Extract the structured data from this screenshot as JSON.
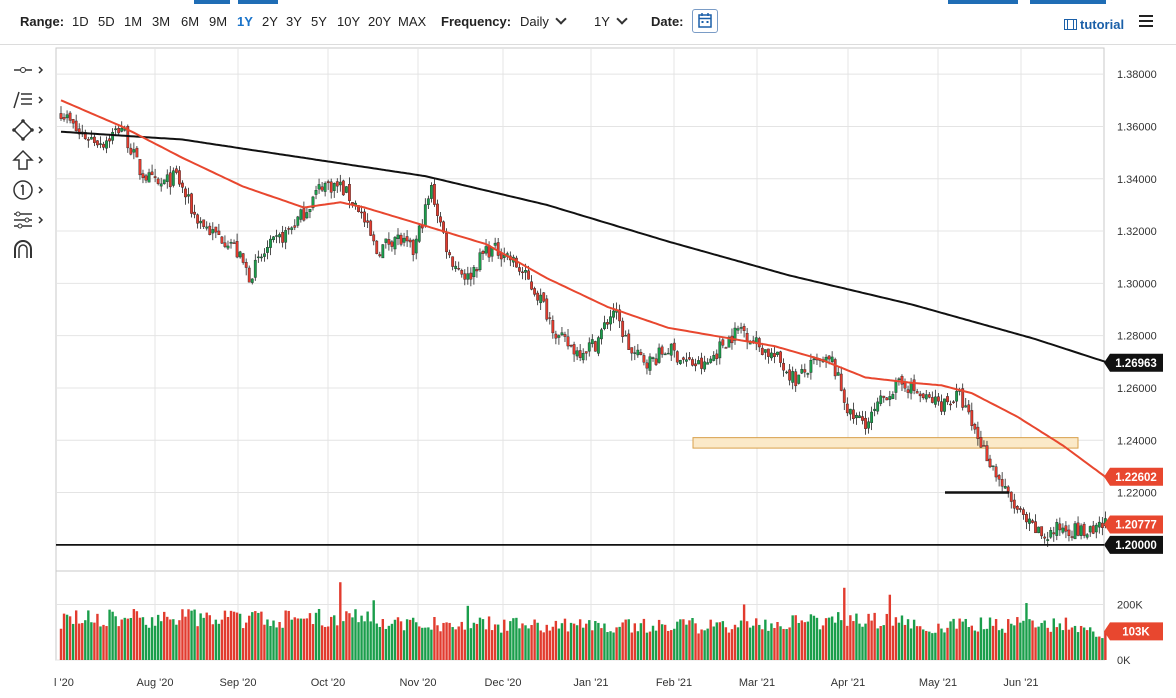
{
  "toolbar": {
    "range_label": "Range:",
    "ranges": [
      "1D",
      "5D",
      "1M",
      "3M",
      "6M",
      "9M",
      "1Y",
      "2Y",
      "3Y",
      "5Y",
      "10Y",
      "20Y",
      "MAX"
    ],
    "active_range": "1Y",
    "frequency_label": "Frequency:",
    "frequency_value": "Daily",
    "period_value": "1Y",
    "date_label": "Date:",
    "tutorial_label": "tutorial",
    "accent_color": "#1a73c9"
  },
  "sidebar_tools": [
    {
      "name": "crosshair-tool",
      "icon": "crosshair-icon"
    },
    {
      "name": "fibonacci-tool",
      "icon": "fib-icon"
    },
    {
      "name": "shapes-tool",
      "icon": "shapes-icon"
    },
    {
      "name": "arrow-tool",
      "icon": "arrow-up-icon"
    },
    {
      "name": "number-tool",
      "icon": "number-one-icon"
    },
    {
      "name": "measure-tool",
      "icon": "measure-icon"
    },
    {
      "name": "magnet-tool",
      "icon": "magnet-icon"
    }
  ],
  "chart_data": {
    "type": "candlestick",
    "ylim": [
      1.19,
      1.39
    ],
    "y_ticks": [
      "1.38000",
      "1.36000",
      "1.34000",
      "1.32000",
      "1.30000",
      "1.28000",
      "1.26000",
      "1.24000",
      "1.22000",
      "1.20000"
    ],
    "x_labels": [
      "l '20",
      "Aug '20",
      "Sep '20",
      "Oct '20",
      "Nov '20",
      "Dec '20",
      "Jan '21",
      "Feb '21",
      "Mar '21",
      "Apr '21",
      "May '21",
      "Jun '21"
    ],
    "close_anchors": [
      [
        0,
        1.366
      ],
      [
        6,
        1.357
      ],
      [
        14,
        1.354
      ],
      [
        20,
        1.36
      ],
      [
        26,
        1.343
      ],
      [
        32,
        1.337
      ],
      [
        38,
        1.341
      ],
      [
        44,
        1.326
      ],
      [
        50,
        1.319
      ],
      [
        56,
        1.316
      ],
      [
        62,
        1.303
      ],
      [
        68,
        1.313
      ],
      [
        74,
        1.319
      ],
      [
        80,
        1.327
      ],
      [
        86,
        1.338
      ],
      [
        92,
        1.337
      ],
      [
        98,
        1.329
      ],
      [
        104,
        1.312
      ],
      [
        110,
        1.318
      ],
      [
        116,
        1.312
      ],
      [
        122,
        1.336
      ],
      [
        128,
        1.31
      ],
      [
        134,
        1.302
      ],
      [
        140,
        1.313
      ],
      [
        146,
        1.312
      ],
      [
        152,
        1.304
      ],
      [
        158,
        1.294
      ],
      [
        164,
        1.279
      ],
      [
        170,
        1.274
      ],
      [
        176,
        1.277
      ],
      [
        182,
        1.29
      ],
      [
        188,
        1.273
      ],
      [
        194,
        1.27
      ],
      [
        200,
        1.275
      ],
      [
        206,
        1.27
      ],
      [
        212,
        1.268
      ],
      [
        218,
        1.277
      ],
      [
        224,
        1.283
      ],
      [
        230,
        1.276
      ],
      [
        236,
        1.271
      ],
      [
        242,
        1.263
      ],
      [
        248,
        1.269
      ],
      [
        254,
        1.27
      ],
      [
        260,
        1.249
      ],
      [
        266,
        1.247
      ],
      [
        272,
        1.258
      ],
      [
        278,
        1.262
      ],
      [
        284,
        1.256
      ],
      [
        290,
        1.254
      ],
      [
        296,
        1.257
      ],
      [
        300,
        1.246
      ],
      [
        306,
        1.232
      ],
      [
        312,
        1.218
      ],
      [
        318,
        1.208
      ],
      [
        324,
        1.203
      ],
      [
        330,
        1.207
      ],
      [
        336,
        1.205
      ],
      [
        340,
        1.204
      ],
      [
        344,
        1.208
      ]
    ],
    "ma_short_anchors": [
      [
        0,
        1.37
      ],
      [
        20,
        1.36
      ],
      [
        40,
        1.348
      ],
      [
        60,
        1.337
      ],
      [
        80,
        1.329
      ],
      [
        92,
        1.331
      ],
      [
        100,
        1.329
      ],
      [
        120,
        1.322
      ],
      [
        140,
        1.315
      ],
      [
        160,
        1.302
      ],
      [
        180,
        1.291
      ],
      [
        200,
        1.283
      ],
      [
        220,
        1.279
      ],
      [
        235,
        1.276
      ],
      [
        250,
        1.271
      ],
      [
        265,
        1.264
      ],
      [
        280,
        1.262
      ],
      [
        290,
        1.261
      ],
      [
        300,
        1.258
      ],
      [
        315,
        1.249
      ],
      [
        330,
        1.238
      ],
      [
        344,
        1.226
      ]
    ],
    "ma_long_anchors": [
      [
        0,
        1.358
      ],
      [
        40,
        1.355
      ],
      [
        80,
        1.348
      ],
      [
        120,
        1.341
      ],
      [
        160,
        1.33
      ],
      [
        200,
        1.316
      ],
      [
        240,
        1.303
      ],
      [
        280,
        1.292
      ],
      [
        320,
        1.279
      ],
      [
        344,
        1.27
      ]
    ],
    "volume_anchors": [
      [
        0,
        150
      ],
      [
        40,
        155
      ],
      [
        80,
        150
      ],
      [
        100,
        165
      ],
      [
        110,
        135
      ],
      [
        150,
        130
      ],
      [
        200,
        125
      ],
      [
        230,
        130
      ],
      [
        260,
        150
      ],
      [
        290,
        125
      ],
      [
        310,
        130
      ],
      [
        330,
        130
      ],
      [
        344,
        103
      ]
    ],
    "volume_spikes": [
      [
        92,
        280
      ],
      [
        103,
        215
      ],
      [
        134,
        195
      ],
      [
        225,
        200
      ],
      [
        258,
        260
      ],
      [
        273,
        235
      ],
      [
        318,
        205
      ]
    ],
    "volume_ticks": [
      "200K",
      "0K"
    ],
    "last_labels": {
      "long_ma": "1.26963",
      "short_ma": "1.22602",
      "close": "1.20777",
      "support": "1.20000",
      "volume": "103K"
    },
    "support_level": 1.2,
    "resistance_zone": [
      1.237,
      1.241
    ],
    "short_resistance": 1.22,
    "colors": {
      "up": "#1a9e4b",
      "down": "#e23b2e",
      "short_ma": "#e8472f",
      "long_ma": "#111111",
      "zone_fill": "#fbe9c8",
      "zone_stroke": "#d8a04a"
    }
  }
}
